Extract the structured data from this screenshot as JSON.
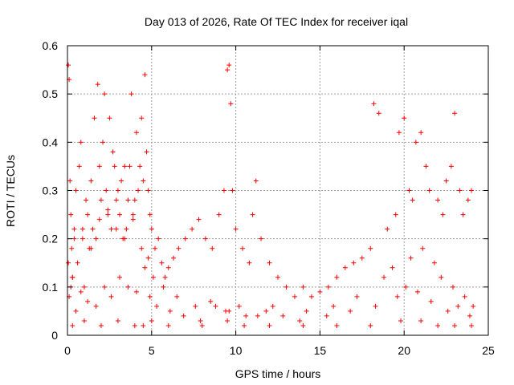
{
  "chart_data": {
    "type": "scatter",
    "title": "Day 013 of 2026, Rate Of TEC Index for receiver iqal",
    "xlabel": "GPS time / hours",
    "ylabel": "ROTI / TECUs",
    "xlim": [
      0,
      25
    ],
    "ylim": [
      0,
      0.6
    ],
    "x_ticks": [
      "0",
      "5",
      "10",
      "15",
      "20",
      "25"
    ],
    "y_ticks": [
      "0",
      "0.1",
      "0.2",
      "0.3",
      "0.4",
      "0.5",
      "0.6"
    ],
    "grid": true,
    "legend": "none",
    "marker": "plus",
    "color": "#ff0000",
    "series": [
      {
        "x": [
          0.05,
          0.1,
          0.15,
          0.2,
          0.25,
          0.3,
          0.4,
          0.5,
          0.6,
          0.7,
          0.8,
          0.9,
          1.0,
          1.1,
          1.2,
          1.3,
          1.4,
          1.5,
          1.6,
          1.7,
          1.8,
          1.9,
          2.0,
          2.1,
          2.2,
          2.3,
          2.4,
          2.5,
          2.6,
          2.7,
          2.8,
          2.9,
          3.0,
          3.1,
          3.2,
          3.3,
          3.4,
          3.5,
          3.6,
          3.7,
          3.8,
          3.9,
          4.0,
          4.1,
          4.2,
          4.3,
          4.4,
          4.5,
          4.6,
          4.7,
          4.8,
          4.9,
          5.0,
          5.2,
          5.4,
          5.6,
          5.8,
          6.0,
          6.3,
          6.6,
          7.0,
          7.4,
          7.8,
          8.2,
          8.6,
          9.0,
          9.3,
          9.5,
          9.6,
          9.7,
          9.8,
          10.0,
          10.4,
          10.8,
          11.0,
          11.2,
          11.5,
          12.0,
          12.5,
          13.0,
          13.5,
          14.0,
          14.5,
          15.0,
          15.5,
          16.0,
          16.5,
          17.0,
          17.5,
          18.0,
          18.2,
          18.5,
          19.0,
          19.5,
          19.7,
          20.0,
          20.3,
          20.5,
          20.7,
          21.0,
          21.3,
          21.5,
          22.0,
          22.3,
          22.5,
          22.8,
          23.0,
          23.3,
          23.5,
          23.8,
          24.0,
          0.1,
          0.2,
          0.3,
          0.5,
          0.8,
          1.2,
          1.7,
          2.2,
          2.6,
          3.1,
          3.6,
          4.1,
          4.6,
          4.9,
          5.3,
          6.1,
          6.9,
          7.9,
          8.8,
          9.6,
          10.6,
          11.8,
          12.2,
          13.8,
          15.4,
          16.8,
          18.3,
          19.6,
          20.1,
          20.8,
          21.6,
          22.6,
          23.2,
          23.9,
          0.05,
          0.4,
          0.9,
          1.4,
          1.9,
          2.4,
          2.9,
          3.4,
          3.9,
          4.4,
          4.8,
          5.1,
          5.7,
          6.5,
          7.6,
          8.5,
          9.4,
          10.2,
          11.3,
          12.8,
          14.2,
          15.8,
          17.2,
          18.8,
          19.3,
          20.4,
          21.1,
          21.8,
          22.2,
          22.9,
          23.6,
          24.1,
          0.3,
          1.0,
          2.0,
          3.0,
          4.0,
          4.5,
          5.0,
          6.0,
          8.0,
          9.5,
          10.5,
          12.0,
          14.0,
          16.0,
          18.0,
          19.8,
          21.0,
          22.0,
          23.0,
          24.0
        ],
        "y": [
          0.56,
          0.53,
          0.32,
          0.25,
          0.18,
          0.12,
          0.22,
          0.3,
          0.15,
          0.35,
          0.4,
          0.2,
          0.1,
          0.28,
          0.25,
          0.18,
          0.32,
          0.22,
          0.45,
          0.2,
          0.52,
          0.35,
          0.28,
          0.4,
          0.5,
          0.3,
          0.25,
          0.45,
          0.22,
          0.38,
          0.35,
          0.28,
          0.3,
          0.25,
          0.32,
          0.2,
          0.35,
          0.22,
          0.28,
          0.35,
          0.5,
          0.25,
          0.28,
          0.42,
          0.3,
          0.35,
          0.45,
          0.32,
          0.54,
          0.38,
          0.3,
          0.25,
          0.22,
          0.18,
          0.2,
          0.15,
          0.12,
          0.14,
          0.16,
          0.18,
          0.2,
          0.22,
          0.24,
          0.2,
          0.18,
          0.25,
          0.3,
          0.55,
          0.56,
          0.48,
          0.3,
          0.22,
          0.18,
          0.15,
          0.25,
          0.32,
          0.2,
          0.15,
          0.12,
          0.1,
          0.08,
          0.1,
          0.08,
          0.09,
          0.1,
          0.12,
          0.14,
          0.15,
          0.16,
          0.18,
          0.48,
          0.46,
          0.22,
          0.25,
          0.42,
          0.45,
          0.3,
          0.28,
          0.4,
          0.42,
          0.35,
          0.3,
          0.28,
          0.25,
          0.32,
          0.35,
          0.46,
          0.3,
          0.25,
          0.28,
          0.3,
          0.08,
          0.1,
          0.12,
          0.05,
          0.09,
          0.07,
          0.06,
          0.1,
          0.08,
          0.12,
          0.1,
          0.09,
          0.14,
          0.08,
          0.06,
          0.05,
          0.04,
          0.03,
          0.06,
          0.05,
          0.04,
          0.05,
          0.06,
          0.03,
          0.04,
          0.05,
          0.06,
          0.08,
          0.1,
          0.09,
          0.07,
          0.05,
          0.06,
          0.04,
          0.15,
          0.2,
          0.22,
          0.18,
          0.24,
          0.26,
          0.22,
          0.2,
          0.24,
          0.18,
          0.16,
          0.12,
          0.1,
          0.08,
          0.06,
          0.07,
          0.05,
          0.06,
          0.04,
          0.04,
          0.05,
          0.06,
          0.08,
          0.12,
          0.14,
          0.16,
          0.18,
          0.15,
          0.12,
          0.1,
          0.08,
          0.06,
          0.02,
          0.03,
          0.02,
          0.03,
          0.02,
          0.02,
          0.03,
          0.02,
          0.02,
          0.03,
          0.02,
          0.02,
          0.02,
          0.02,
          0.02,
          0.03,
          0.03,
          0.02,
          0.02,
          0.02
        ]
      }
    ]
  }
}
